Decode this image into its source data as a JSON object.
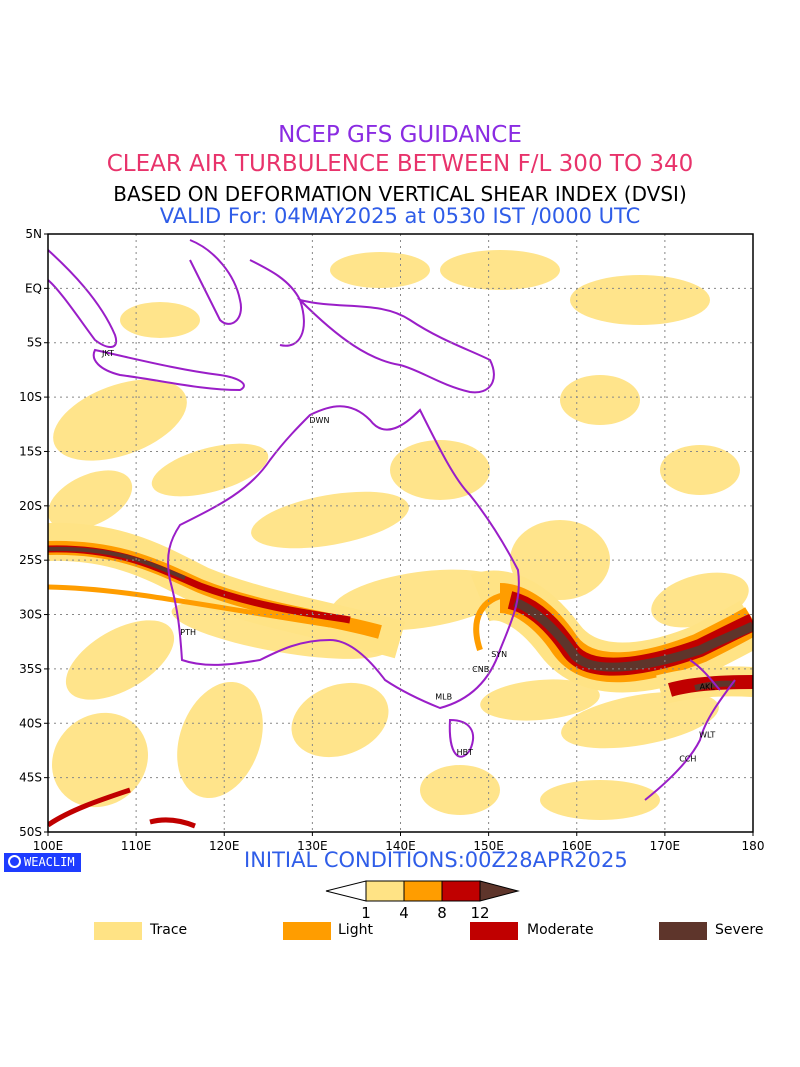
{
  "header": {
    "line1": "NCEP GFS GUIDANCE",
    "line2": "CLEAR AIR TURBULENCE BETWEEN F/L 300 TO 340",
    "line3": "BASED ON DEFORMATION VERTICAL SHEAR INDEX (DVSI)",
    "line4": "VALID For: 04MAY2025 at 0530 IST /0000 UTC"
  },
  "map": {
    "lat_labels": [
      "5N",
      "EQ",
      "5S",
      "10S",
      "15S",
      "20S",
      "25S",
      "30S",
      "35S",
      "40S",
      "45S",
      "50S"
    ],
    "lon_labels": [
      "100E",
      "110E",
      "120E",
      "130E",
      "140E",
      "150E",
      "160E",
      "170E",
      "180"
    ],
    "stations": [
      {
        "code": "JKT",
        "lon": 106.8,
        "lat": -6.2
      },
      {
        "code": "DWN",
        "lon": 130.8,
        "lat": -12.4
      },
      {
        "code": "PTH",
        "lon": 115.9,
        "lat": -31.9
      },
      {
        "code": "SYN",
        "lon": 151.2,
        "lat": -33.9
      },
      {
        "code": "CNB",
        "lon": 149.1,
        "lat": -35.3
      },
      {
        "code": "MLB",
        "lon": 144.9,
        "lat": -37.8
      },
      {
        "code": "HBT",
        "lon": 147.3,
        "lat": -42.9
      },
      {
        "code": "AKL",
        "lon": 174.8,
        "lat": -36.9
      },
      {
        "code": "WLT",
        "lon": 174.8,
        "lat": -41.3
      },
      {
        "code": "CCH",
        "lon": 172.6,
        "lat": -43.5
      }
    ],
    "colors": {
      "coast": "#9a1ec8",
      "trace": "#ffe385",
      "light": "#ff9d00",
      "moderate": "#c00000",
      "severe": "#5e352b",
      "grid": "#888888"
    }
  },
  "footer": {
    "brand": "WEACLIM",
    "initial": "INITIAL CONDITIONS:00Z28APR2025"
  },
  "colorbar": {
    "thresholds": [
      "1",
      "4",
      "8",
      "12"
    ],
    "colors": [
      "#ffe385",
      "#ff9d00",
      "#c00000",
      "#5e352b"
    ]
  },
  "legend": [
    {
      "label": "Trace",
      "color": "#ffe385"
    },
    {
      "label": "Light",
      "color": "#ff9d00"
    },
    {
      "label": "Moderate",
      "color": "#c00000"
    },
    {
      "label": "Severe",
      "color": "#5e352b"
    }
  ]
}
